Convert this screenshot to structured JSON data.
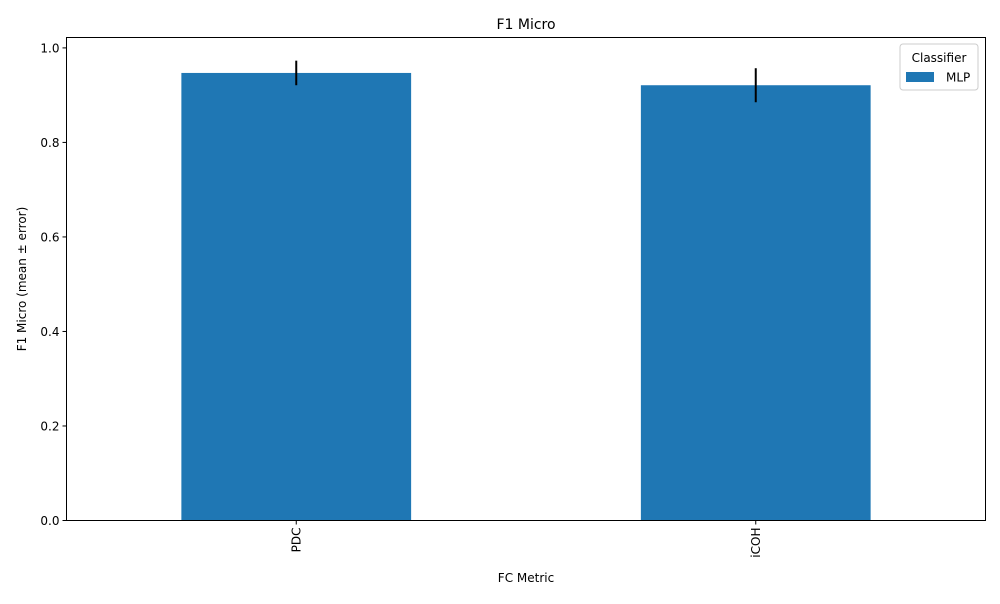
{
  "chart_data": {
    "type": "bar",
    "title": "F1 Micro",
    "xlabel": "FC Metric",
    "ylabel": "F1 Micro (mean ± error)",
    "categories": [
      "PDC",
      "iCOH"
    ],
    "series": [
      {
        "name": "MLP",
        "color": "#1f77b4",
        "values": [
          0.947,
          0.921
        ],
        "errors": [
          0.026,
          0.036
        ]
      }
    ],
    "ylim": [
      0,
      1.022
    ],
    "yticks": [
      "0.0",
      "0.2",
      "0.4",
      "0.6",
      "0.8",
      "1.0"
    ],
    "ytick_values": [
      0,
      0.2,
      0.4,
      0.6,
      0.8,
      1.0
    ],
    "grid": false,
    "legend": {
      "title": "Classifier",
      "placement": "top-right"
    }
  }
}
